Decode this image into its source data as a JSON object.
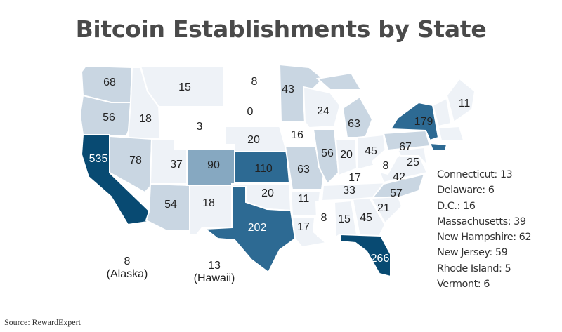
{
  "title": "Bitcoin Establishments by State",
  "source": "Source: RewardExpert",
  "colors": {
    "low": "#eef2f7",
    "mid": "#c9d6e2",
    "midhigh": "#86a8c1",
    "high": "#2d6a93",
    "max": "#084a72"
  },
  "states": [
    {
      "abbr": "WA",
      "value": "68"
    },
    {
      "abbr": "OR",
      "value": "56"
    },
    {
      "abbr": "CA",
      "value": "535"
    },
    {
      "abbr": "ID",
      "value": "18"
    },
    {
      "abbr": "NV",
      "value": "78"
    },
    {
      "abbr": "MT",
      "value": "15"
    },
    {
      "abbr": "WY",
      "value": "3"
    },
    {
      "abbr": "UT",
      "value": "37"
    },
    {
      "abbr": "AZ",
      "value": "54"
    },
    {
      "abbr": "CO",
      "value": "90"
    },
    {
      "abbr": "NM",
      "value": "18"
    },
    {
      "abbr": "ND",
      "value": "8"
    },
    {
      "abbr": "SD",
      "value": "0"
    },
    {
      "abbr": "NE",
      "value": "20"
    },
    {
      "abbr": "KS",
      "value": "110"
    },
    {
      "abbr": "OK",
      "value": "20"
    },
    {
      "abbr": "TX",
      "value": "202"
    },
    {
      "abbr": "MN",
      "value": "43"
    },
    {
      "abbr": "IA",
      "value": "16"
    },
    {
      "abbr": "MO",
      "value": "63"
    },
    {
      "abbr": "AR",
      "value": "11"
    },
    {
      "abbr": "LA",
      "value": "17"
    },
    {
      "abbr": "WI",
      "value": "24"
    },
    {
      "abbr": "IL",
      "value": "56"
    },
    {
      "abbr": "MI",
      "value": "63"
    },
    {
      "abbr": "IN",
      "value": "20"
    },
    {
      "abbr": "OH",
      "value": "45"
    },
    {
      "abbr": "KY",
      "value": "17"
    },
    {
      "abbr": "TN",
      "value": "33"
    },
    {
      "abbr": "MS",
      "value": "8"
    },
    {
      "abbr": "AL",
      "value": "15"
    },
    {
      "abbr": "GA",
      "value": "45"
    },
    {
      "abbr": "FL",
      "value": "266"
    },
    {
      "abbr": "SC",
      "value": "21"
    },
    {
      "abbr": "NC",
      "value": "57"
    },
    {
      "abbr": "VA",
      "value": "42"
    },
    {
      "abbr": "WV",
      "value": "8"
    },
    {
      "abbr": "PA",
      "value": "67"
    },
    {
      "abbr": "NY",
      "value": "179"
    },
    {
      "abbr": "MD",
      "value": "25"
    },
    {
      "abbr": "ME",
      "value": "11"
    }
  ],
  "territories": [
    {
      "value": "8",
      "name": "(Alaska)"
    },
    {
      "value": "13",
      "name": "(Hawaii)"
    }
  ],
  "legend": [
    "Connecticut: 13",
    "Delaware: 6",
    "D.C.: 16",
    "Massachusetts: 39",
    "New Hampshire: 62",
    "New Jersey: 59",
    "Rhode Island: 5",
    "Vermont: 6"
  ]
}
